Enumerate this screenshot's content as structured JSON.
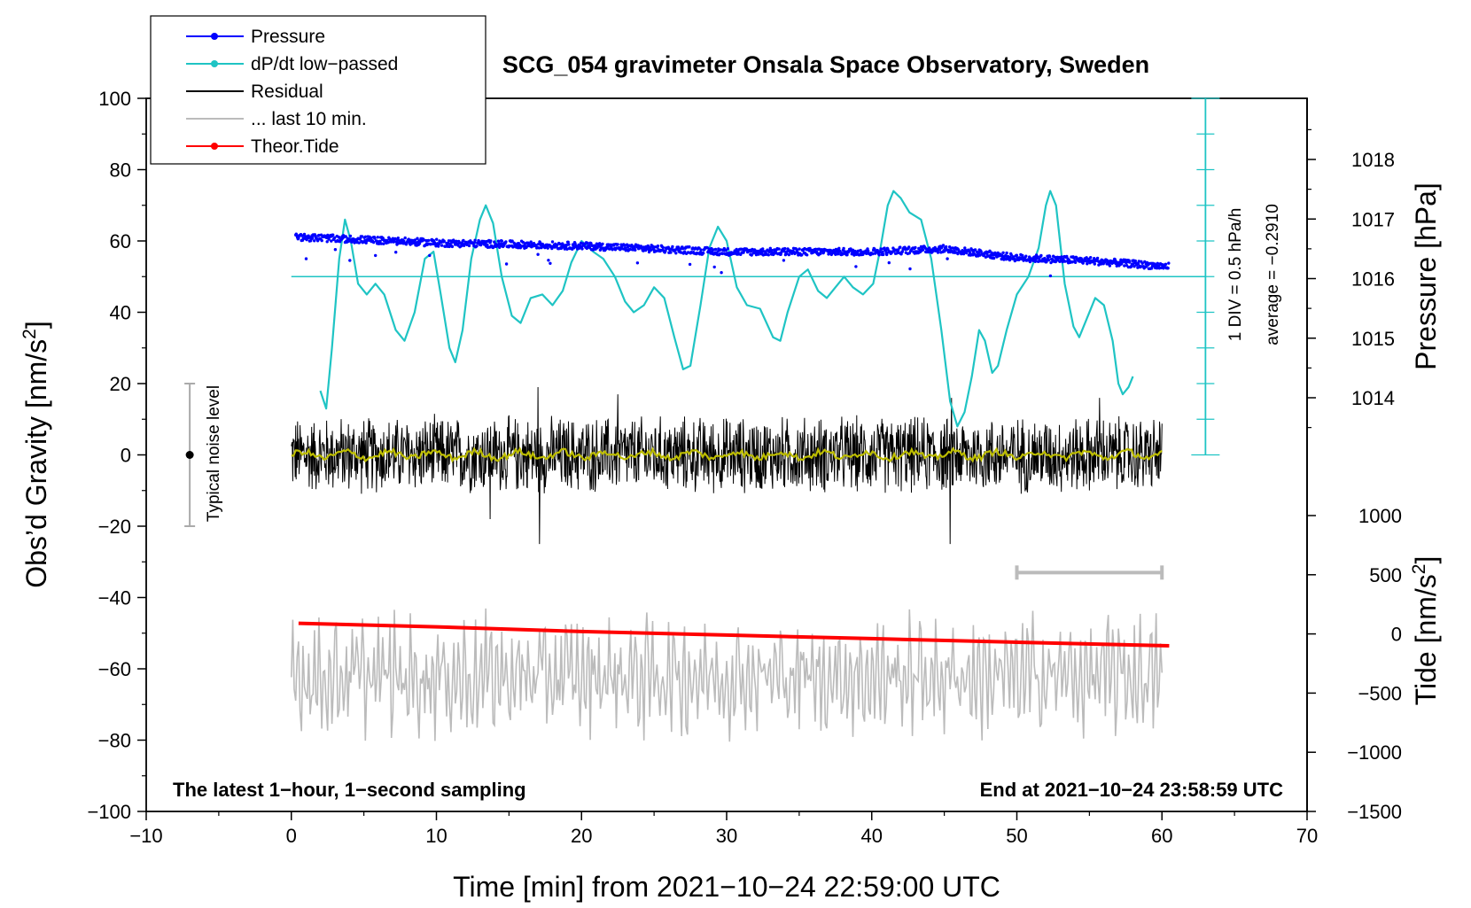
{
  "chart_data": {
    "type": "line",
    "title": "SCG_054 gravimeter Onsala Space Observatory, Sweden",
    "xlabel": "Time [min] from 2021−10−24 22:59:00 UTC",
    "ylabel_left_text": "Obs’d Gravity [nm/s",
    "ylabel_left_sup": "2",
    "ylabel_left_end": "]",
    "ylabel_right_top": "Pressure [hPa]",
    "ylabel_right_bottom_text": "Tide [nm/s",
    "ylabel_right_bottom_sup": "2",
    "ylabel_right_bottom_end": "]",
    "xlim": [
      -10,
      70
    ],
    "ylim_left": [
      -100,
      100
    ],
    "pressure_axis_range": [
      1013,
      1019
    ],
    "tide_axis_range": [
      -1500,
      1500
    ],
    "x_ticks": [
      "−10",
      "0",
      "10",
      "20",
      "30",
      "40",
      "50",
      "60",
      "70"
    ],
    "y_ticks_left": [
      "100",
      "80",
      "60",
      "40",
      "20",
      "0",
      "−20",
      "−40",
      "−60",
      "−80",
      "−100"
    ],
    "pressure_ticks": [
      "1018",
      "1017",
      "1016",
      "1015",
      "1014"
    ],
    "tide_ticks": [
      "1000",
      "500",
      "0",
      "−500",
      "−1000",
      "−1500"
    ],
    "legend": [
      {
        "label": "Pressure",
        "color": "#0000ff",
        "marker": true
      },
      {
        "label": "dP/dt low−passed",
        "color": "#1fc4c4",
        "marker": true
      },
      {
        "label": "Residual",
        "color": "#000000",
        "marker": false
      },
      {
        "label": "... last 10 min.",
        "color": "#bbbbbb",
        "marker": false
      },
      {
        "label": "Theor.Tide",
        "color": "#ff0000",
        "marker": true
      }
    ],
    "notes": {
      "bottom_left": "The latest 1−hour, 1−second sampling",
      "bottom_right": "End at 2021−10−24 23:58:59 UTC",
      "noise_label": "Typical noise level",
      "div_label": "1 DIV = 0.5 hPa/h",
      "average_label": "average = −0.2910"
    },
    "noise_bar": {
      "x": -7,
      "center": 0,
      "half_range": 20
    },
    "dpdt_zero_level_gravity_units": 50,
    "dpdt_scale_bar_gravity_range": [
      0,
      100
    ],
    "last10_bar_minutes": [
      50,
      60
    ],
    "last10_bar_level": -33,
    "series": [
      {
        "name": "Pressure",
        "axis": "pressure_hpa",
        "color": "#0000ff",
        "points": [
          [
            0.3,
            1016.7
          ],
          [
            10,
            1016.6
          ],
          [
            20,
            1016.55
          ],
          [
            30,
            1016.45
          ],
          [
            40,
            1016.45
          ],
          [
            45,
            1016.5
          ],
          [
            50,
            1016.35
          ],
          [
            55,
            1016.3
          ],
          [
            60.5,
            1016.2
          ]
        ],
        "noise_amplitude": 0.06
      },
      {
        "name": "dP/dt low-passed",
        "axis": "gravity_units",
        "color": "#1fc4c4",
        "points": [
          [
            2,
            18
          ],
          [
            2.4,
            13
          ],
          [
            2.8,
            30
          ],
          [
            3.3,
            55
          ],
          [
            3.7,
            66
          ],
          [
            4.1,
            60
          ],
          [
            4.6,
            48
          ],
          [
            5.2,
            45
          ],
          [
            5.8,
            48
          ],
          [
            6.4,
            45
          ],
          [
            7.2,
            35
          ],
          [
            7.8,
            32
          ],
          [
            8.5,
            40
          ],
          [
            9.2,
            55
          ],
          [
            9.8,
            57
          ],
          [
            10.3,
            45
          ],
          [
            10.9,
            30
          ],
          [
            11.3,
            26
          ],
          [
            11.8,
            35
          ],
          [
            12.4,
            55
          ],
          [
            13,
            66
          ],
          [
            13.4,
            70
          ],
          [
            13.9,
            65
          ],
          [
            14.5,
            50
          ],
          [
            15.2,
            39
          ],
          [
            15.8,
            37
          ],
          [
            16.5,
            44
          ],
          [
            17.3,
            45
          ],
          [
            18,
            42
          ],
          [
            18.7,
            46
          ],
          [
            19.3,
            54
          ],
          [
            20,
            60
          ],
          [
            20.8,
            57
          ],
          [
            21.5,
            55
          ],
          [
            22.3,
            50
          ],
          [
            23,
            43
          ],
          [
            23.6,
            40
          ],
          [
            24.3,
            42
          ],
          [
            25,
            47
          ],
          [
            25.7,
            44
          ],
          [
            26.4,
            33
          ],
          [
            27,
            24
          ],
          [
            27.5,
            25
          ],
          [
            28.2,
            42
          ],
          [
            28.8,
            58
          ],
          [
            29.4,
            64
          ],
          [
            30,
            60
          ],
          [
            30.7,
            47
          ],
          [
            31.4,
            42
          ],
          [
            32.3,
            41
          ],
          [
            33.2,
            33
          ],
          [
            33.7,
            32
          ],
          [
            34.2,
            40
          ],
          [
            35,
            50
          ],
          [
            35.6,
            52
          ],
          [
            36.3,
            46
          ],
          [
            36.9,
            44
          ],
          [
            37.5,
            47
          ],
          [
            38.1,
            50
          ],
          [
            38.7,
            47
          ],
          [
            39.4,
            45
          ],
          [
            40.1,
            48
          ],
          [
            40.6,
            58
          ],
          [
            41.1,
            70
          ],
          [
            41.5,
            74
          ],
          [
            42,
            72
          ],
          [
            42.6,
            68
          ],
          [
            43.4,
            66
          ],
          [
            44.1,
            55
          ],
          [
            44.8,
            35
          ],
          [
            45.4,
            15
          ],
          [
            45.9,
            8
          ],
          [
            46.4,
            12
          ],
          [
            46.9,
            22
          ],
          [
            47.4,
            35
          ],
          [
            47.8,
            32
          ],
          [
            48.3,
            23
          ],
          [
            48.7,
            25
          ],
          [
            49.3,
            35
          ],
          [
            50,
            45
          ],
          [
            50.8,
            50
          ],
          [
            51.5,
            58
          ],
          [
            52,
            70
          ],
          [
            52.3,
            74
          ],
          [
            52.7,
            70
          ],
          [
            53.3,
            48
          ],
          [
            53.9,
            36
          ],
          [
            54.3,
            33
          ],
          [
            54.8,
            38
          ],
          [
            55.4,
            44
          ],
          [
            56,
            42
          ],
          [
            56.6,
            32
          ],
          [
            57,
            20
          ],
          [
            57.3,
            17
          ],
          [
            57.7,
            19
          ],
          [
            58,
            22
          ]
        ]
      },
      {
        "name": "Residual",
        "axis": "gravity_units",
        "color": "#000000",
        "x_range": [
          0,
          60
        ],
        "level": 0,
        "amplitude": 12,
        "spikes": [
          [
            17.1,
            -25
          ],
          [
            17.0,
            19
          ],
          [
            45.4,
            -25
          ],
          [
            45.5,
            16
          ],
          [
            13.7,
            -18
          ],
          [
            55.7,
            16
          ],
          [
            22.5,
            17
          ]
        ]
      },
      {
        "name": "Residual smoothed",
        "axis": "gravity_units",
        "color": "#bdbd00",
        "x_range": [
          0,
          60
        ],
        "level": 0,
        "amplitude": 1.5
      },
      {
        "name": "... last 10 min.",
        "axis": "gravity_units",
        "color": "#bbbbbb",
        "x_range": [
          0,
          60
        ],
        "level": -62,
        "amplitude": 10
      },
      {
        "name": "Theor.Tide",
        "axis": "tide_nm_s2",
        "color": "#ff0000",
        "points": [
          [
            0.5,
            90
          ],
          [
            10,
            60
          ],
          [
            20,
            20
          ],
          [
            30,
            -10
          ],
          [
            40,
            -40
          ],
          [
            50,
            -70
          ],
          [
            60.5,
            -100
          ]
        ]
      }
    ]
  }
}
